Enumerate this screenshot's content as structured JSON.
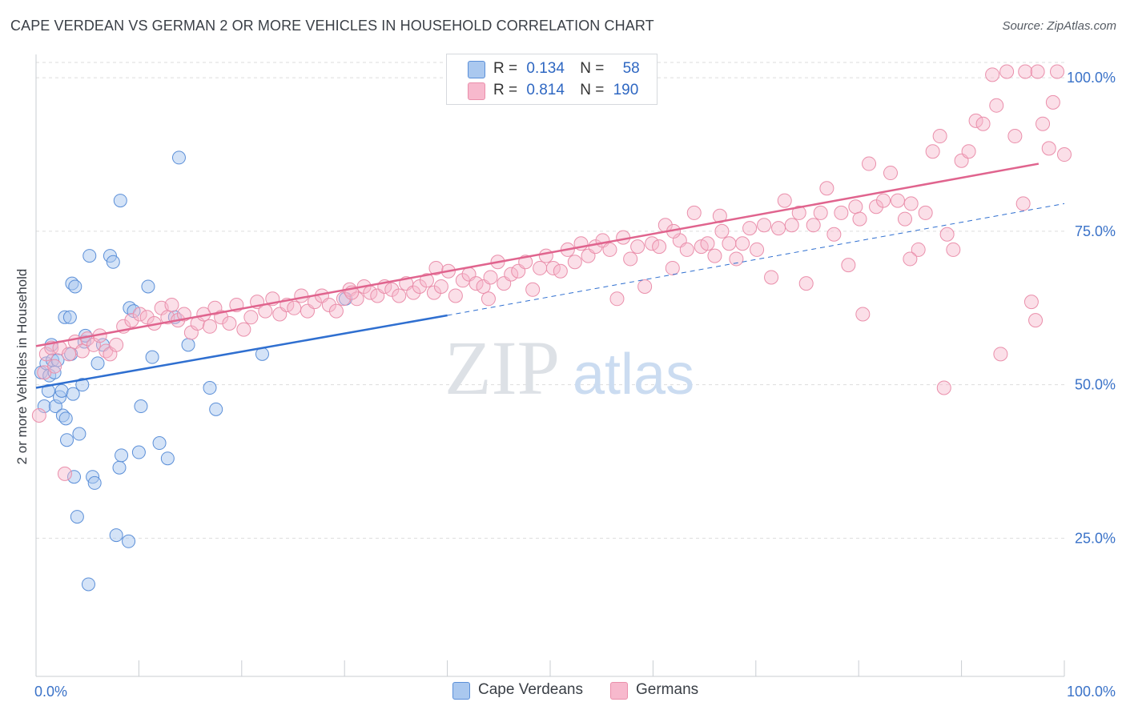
{
  "title": "CAPE VERDEAN VS GERMAN 2 OR MORE VEHICLES IN HOUSEHOLD CORRELATION CHART",
  "source": "Source: ZipAtlas.com",
  "watermark": {
    "zip": "ZIP",
    "atlas": "atlas"
  },
  "legend_top": {
    "rows": [
      {
        "r_label": "R =",
        "r_value": "0.134",
        "n_label": "N =",
        "n_value": "58"
      },
      {
        "r_label": "R =",
        "r_value": "0.814",
        "n_label": "N =",
        "n_value": "190"
      }
    ]
  },
  "legend_bottom": [
    {
      "label": "Cape Verdeans"
    },
    {
      "label": "Germans"
    }
  ],
  "chart_data": {
    "type": "scatter",
    "title": "CAPE VERDEAN VS GERMAN 2 OR MORE VEHICLES IN HOUSEHOLD CORRELATION CHART",
    "xlabel": "",
    "ylabel": "2 or more Vehicles in Household",
    "x_tick_labels": [
      "0.0%",
      "100.0%"
    ],
    "y_tick_labels": [
      "100.0%",
      "75.0%",
      "50.0%",
      "25.0%"
    ],
    "xlim": [
      0,
      100
    ],
    "ylim": [
      2.5,
      102.5
    ],
    "y_gridlines": [
      25,
      50,
      75,
      100
    ],
    "grid": true,
    "legend_position": "top-center",
    "colors": {
      "cape_verdeans_fill": "#aac8ef",
      "cape_verdeans_stroke": "#5b8fd8",
      "cape_verdeans_line": "#2f6fd0",
      "germans_fill": "#f7b9cd",
      "germans_stroke": "#ea8fab",
      "germans_line": "#e0648e",
      "tick_label": "#3a72c8",
      "grid": "#dddddd"
    },
    "series": [
      {
        "name": "Cape Verdeans",
        "trend": {
          "x": [
            0,
            40
          ],
          "y": [
            49.5,
            61.3
          ],
          "extended_to_x": 100,
          "extended_y": 79.5
        },
        "points": [
          [
            0.5,
            52
          ],
          [
            0.8,
            46.5
          ],
          [
            1.0,
            53.5
          ],
          [
            1.2,
            49
          ],
          [
            1.3,
            51.5
          ],
          [
            1.5,
            56.5
          ],
          [
            1.6,
            54
          ],
          [
            1.8,
            52
          ],
          [
            1.9,
            46.5
          ],
          [
            2.1,
            54
          ],
          [
            2.3,
            48
          ],
          [
            2.5,
            49
          ],
          [
            2.6,
            45
          ],
          [
            2.8,
            61
          ],
          [
            2.9,
            44.5
          ],
          [
            3.0,
            41
          ],
          [
            3.3,
            61
          ],
          [
            3.4,
            55
          ],
          [
            3.5,
            66.5
          ],
          [
            3.6,
            48.5
          ],
          [
            3.7,
            35
          ],
          [
            3.8,
            66
          ],
          [
            4.0,
            28.5
          ],
          [
            4.2,
            42
          ],
          [
            4.5,
            50
          ],
          [
            4.7,
            57
          ],
          [
            4.8,
            58
          ],
          [
            5.1,
            17.5
          ],
          [
            5.2,
            71
          ],
          [
            5.5,
            35
          ],
          [
            5.7,
            34
          ],
          [
            6.0,
            53.5
          ],
          [
            6.5,
            56.5
          ],
          [
            7.2,
            71
          ],
          [
            7.5,
            70
          ],
          [
            7.8,
            25.5
          ],
          [
            8.1,
            36.5
          ],
          [
            8.2,
            80
          ],
          [
            8.3,
            38.5
          ],
          [
            9.0,
            24.5
          ],
          [
            9.1,
            62.5
          ],
          [
            9.5,
            62
          ],
          [
            10.0,
            39
          ],
          [
            10.2,
            46.5
          ],
          [
            10.9,
            66
          ],
          [
            11.3,
            54.5
          ],
          [
            12.0,
            40.5
          ],
          [
            12.8,
            38
          ],
          [
            13.5,
            61
          ],
          [
            13.9,
            87
          ],
          [
            14.8,
            56.5
          ],
          [
            16.9,
            49.5
          ],
          [
            17.5,
            46
          ],
          [
            22.0,
            55
          ],
          [
            30.1,
            64
          ]
        ]
      },
      {
        "name": "Germans",
        "trend": {
          "x": [
            0,
            97.5
          ],
          "y": [
            56.3,
            86
          ]
        },
        "points": [
          [
            0.3,
            45
          ],
          [
            0.8,
            52
          ],
          [
            1.0,
            55
          ],
          [
            1.5,
            56
          ],
          [
            1.8,
            53
          ],
          [
            2.3,
            56
          ],
          [
            2.8,
            35.5
          ],
          [
            3.2,
            55
          ],
          [
            3.8,
            57
          ],
          [
            4.5,
            55.5
          ],
          [
            5.0,
            57.5
          ],
          [
            5.6,
            56.5
          ],
          [
            6.2,
            58
          ],
          [
            6.8,
            55.5
          ],
          [
            7.2,
            55
          ],
          [
            7.8,
            56.5
          ],
          [
            8.5,
            59.5
          ],
          [
            9.3,
            60.5
          ],
          [
            10.1,
            61.5
          ],
          [
            10.8,
            61
          ],
          [
            11.5,
            60
          ],
          [
            12.2,
            62.5
          ],
          [
            12.8,
            61
          ],
          [
            13.2,
            63
          ],
          [
            13.8,
            60.5
          ],
          [
            14.4,
            61.5
          ],
          [
            15.1,
            58.5
          ],
          [
            15.7,
            60
          ],
          [
            16.3,
            61.5
          ],
          [
            16.9,
            59.5
          ],
          [
            17.4,
            62.5
          ],
          [
            18.0,
            61
          ],
          [
            18.8,
            60
          ],
          [
            19.5,
            63
          ],
          [
            20.2,
            59
          ],
          [
            20.9,
            61
          ],
          [
            21.5,
            63.5
          ],
          [
            22.3,
            62
          ],
          [
            23.0,
            64
          ],
          [
            23.7,
            61.5
          ],
          [
            24.4,
            63
          ],
          [
            25.1,
            62.5
          ],
          [
            25.8,
            64.5
          ],
          [
            26.4,
            62
          ],
          [
            27.1,
            63.5
          ],
          [
            27.8,
            64.5
          ],
          [
            28.5,
            63
          ],
          [
            29.2,
            62
          ],
          [
            29.9,
            64
          ],
          [
            30.5,
            65.5
          ],
          [
            31.2,
            64
          ],
          [
            31.9,
            66
          ],
          [
            32.5,
            65
          ],
          [
            33.2,
            64.5
          ],
          [
            33.9,
            66
          ],
          [
            34.6,
            65.5
          ],
          [
            35.3,
            64.5
          ],
          [
            36.0,
            66.5
          ],
          [
            36.7,
            65
          ],
          [
            37.3,
            66
          ],
          [
            38.0,
            67
          ],
          [
            38.7,
            65
          ],
          [
            39.4,
            66
          ],
          [
            40.1,
            68.5
          ],
          [
            40.8,
            64.5
          ],
          [
            41.5,
            67
          ],
          [
            42.1,
            68
          ],
          [
            42.8,
            66.5
          ],
          [
            43.5,
            66
          ],
          [
            44.2,
            67.5
          ],
          [
            44.9,
            70
          ],
          [
            45.5,
            66.5
          ],
          [
            46.2,
            68
          ],
          [
            46.9,
            68.5
          ],
          [
            47.6,
            70
          ],
          [
            48.3,
            65.5
          ],
          [
            49.0,
            69
          ],
          [
            49.6,
            71
          ],
          [
            50.3,
            69
          ],
          [
            51.0,
            68.5
          ],
          [
            51.7,
            72
          ],
          [
            52.4,
            70
          ],
          [
            53.0,
            73
          ],
          [
            53.7,
            71
          ],
          [
            54.4,
            72.5
          ],
          [
            55.1,
            73.5
          ],
          [
            55.8,
            72
          ],
          [
            56.5,
            64
          ],
          [
            57.1,
            74
          ],
          [
            57.8,
            70.5
          ],
          [
            58.5,
            72.5
          ],
          [
            59.2,
            66
          ],
          [
            59.9,
            73
          ],
          [
            60.6,
            72.5
          ],
          [
            61.2,
            76
          ],
          [
            61.9,
            69
          ],
          [
            62.6,
            73.5
          ],
          [
            63.3,
            72
          ],
          [
            64.0,
            78
          ],
          [
            64.7,
            72.5
          ],
          [
            65.3,
            73
          ],
          [
            66.0,
            71
          ],
          [
            66.7,
            75
          ],
          [
            67.4,
            73
          ],
          [
            68.1,
            70.5
          ],
          [
            68.7,
            73
          ],
          [
            69.4,
            75.5
          ],
          [
            70.1,
            72
          ],
          [
            70.8,
            76
          ],
          [
            71.5,
            67.5
          ],
          [
            72.2,
            75.5
          ],
          [
            72.8,
            80
          ],
          [
            73.5,
            76
          ],
          [
            74.2,
            78
          ],
          [
            74.9,
            66.5
          ],
          [
            75.6,
            76
          ],
          [
            76.3,
            78
          ],
          [
            76.9,
            82
          ],
          [
            77.6,
            74.5
          ],
          [
            78.3,
            78
          ],
          [
            79.0,
            69.5
          ],
          [
            79.7,
            79
          ],
          [
            80.4,
            61.5
          ],
          [
            81.0,
            86
          ],
          [
            81.7,
            79
          ],
          [
            82.4,
            80
          ],
          [
            83.1,
            84.5
          ],
          [
            83.8,
            80
          ],
          [
            84.5,
            77
          ],
          [
            85.1,
            79.5
          ],
          [
            85.8,
            72
          ],
          [
            86.5,
            78
          ],
          [
            87.2,
            88
          ],
          [
            87.9,
            90.5
          ],
          [
            88.6,
            74.5
          ],
          [
            89.2,
            72
          ],
          [
            90.0,
            86.5
          ],
          [
            90.7,
            88
          ],
          [
            91.4,
            93
          ],
          [
            92.1,
            92.5
          ],
          [
            93.0,
            100.5
          ],
          [
            93.8,
            55
          ],
          [
            94.4,
            101
          ],
          [
            95.2,
            90.5
          ],
          [
            96.0,
            79.5
          ],
          [
            96.8,
            63.5
          ],
          [
            97.2,
            60.5
          ],
          [
            97.9,
            92.5
          ],
          [
            98.5,
            88.5
          ],
          [
            99.3,
            101
          ],
          [
            100.0,
            87.5
          ],
          [
            88.3,
            49.5
          ],
          [
            85.0,
            70.5
          ],
          [
            80.1,
            77
          ],
          [
            66.5,
            77.5
          ],
          [
            62.0,
            75
          ],
          [
            44.0,
            64
          ],
          [
            38.9,
            69
          ],
          [
            30.7,
            65
          ],
          [
            93.4,
            95.5
          ],
          [
            96.2,
            101
          ],
          [
            98.9,
            96
          ],
          [
            97.4,
            101
          ]
        ]
      }
    ]
  }
}
